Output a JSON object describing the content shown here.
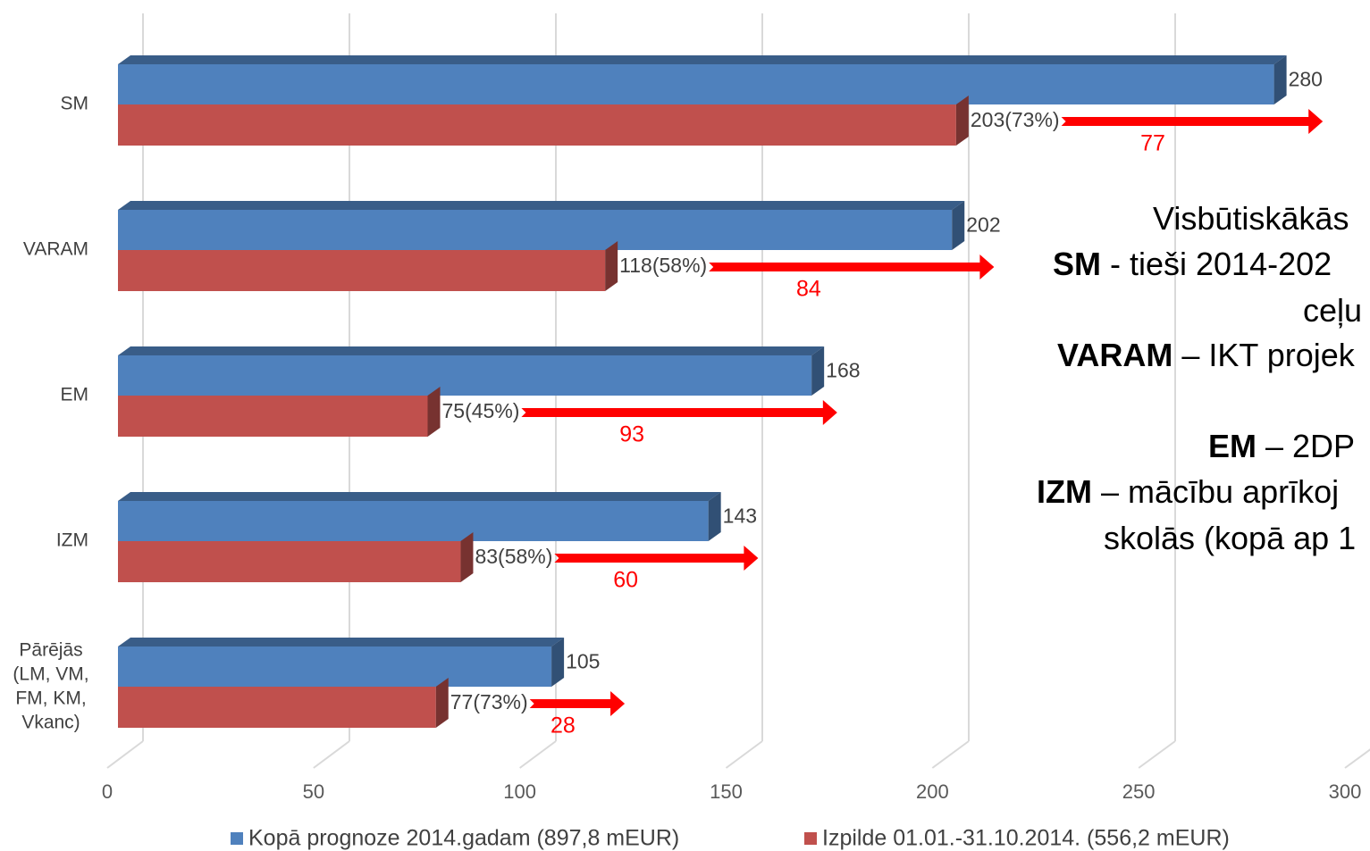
{
  "chart_data": {
    "type": "hbar",
    "categories": [
      "SM",
      "VARAM",
      "EM",
      "IZM",
      "Pārējās\n(LM, VM,\nFM, KM,\nVkanc)"
    ],
    "series": [
      {
        "name": "Kopā prognoze 2014.gadam (897,8 mEUR)",
        "color": "#4f81bd",
        "values": [
          280,
          202,
          168,
          143,
          105
        ]
      },
      {
        "name": "Izpilde 01.01.-31.10.2014. (556,2 mEUR)",
        "color": "#c0504d",
        "values": [
          203,
          118,
          75,
          83,
          77
        ],
        "value_labels": [
          "203(73%)",
          "118(58%)",
          "75(45%)",
          "83(58%)",
          "77(73%)"
        ]
      }
    ],
    "arrows": {
      "color": "#ff0000",
      "values": [
        77,
        84,
        93,
        60,
        28
      ]
    },
    "xlim": [
      0,
      300
    ],
    "xticks": [
      0,
      50,
      100,
      150,
      200,
      250,
      300
    ],
    "grid": true,
    "legend": "bottom",
    "text_lines": [
      [
        "Visbūtiskākās"
      ],
      [
        "SM",
        " - tieši 2014-202"
      ],
      [
        "ceļu"
      ],
      [
        "VARAM",
        " – IKT projek"
      ],
      [
        "EM",
        " – 2DP"
      ],
      [
        "IZM",
        " – mācību aprīkoj"
      ],
      [
        "skolās (kopā ap 1"
      ]
    ]
  }
}
